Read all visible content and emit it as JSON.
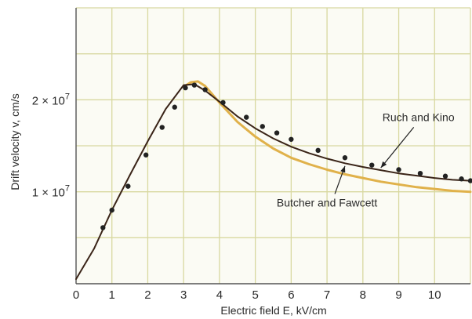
{
  "chart_data": {
    "type": "line",
    "xlabel": "Electric field E, kV/cm",
    "ylabel": "Drift velocity v, cm/s",
    "xlim": [
      0,
      11
    ],
    "ylim": [
      0,
      30000000.0
    ],
    "x_ticks": [
      0,
      1,
      2,
      3,
      4,
      5,
      6,
      7,
      8,
      9,
      10
    ],
    "x_tick_labels": [
      "0",
      "1",
      "2",
      "3",
      "4",
      "5",
      "6",
      "7",
      "8",
      "9",
      "10"
    ],
    "y_ticks": [
      10000000.0,
      20000000.0
    ],
    "y_tick_labels": [
      {
        "mantissa": "1",
        "times": "×",
        "base": "10",
        "exp": "7"
      },
      {
        "mantissa": "2",
        "times": "×",
        "base": "10",
        "exp": "7"
      }
    ],
    "grid": true,
    "series": [
      {
        "name": "Ruch and Kino",
        "color": "#3a2418",
        "marker": "dot",
        "line_x": [
          0,
          0.5,
          1.0,
          1.5,
          2.0,
          2.5,
          3.0,
          3.3,
          3.6,
          4.0,
          4.5,
          5.0,
          5.5,
          6.0,
          6.5,
          7.0,
          7.5,
          8.0,
          8.5,
          9.0,
          9.5,
          10.0,
          10.5,
          11.0
        ],
        "line_y": [
          500000.0,
          3800000.0,
          8000000.0,
          11800000.0,
          15500000.0,
          19000000.0,
          21600000.0,
          21700000.0,
          21000000.0,
          19800000.0,
          18200000.0,
          16900000.0,
          15800000.0,
          14900000.0,
          14200000.0,
          13600000.0,
          13100000.0,
          12700000.0,
          12350000.0,
          12000000.0,
          11750000.0,
          11500000.0,
          11300000.0,
          11200000.0
        ],
        "points_x": [
          0.75,
          1.0,
          1.45,
          1.95,
          2.4,
          2.75,
          3.05,
          3.3,
          3.6,
          4.1,
          4.75,
          5.2,
          5.6,
          6.0,
          6.75,
          7.5,
          8.25,
          9.0,
          9.6,
          10.3,
          10.75,
          11.0
        ],
        "points_y": [
          6100000.0,
          8000000.0,
          10600000.0,
          14000000.0,
          17000000.0,
          19200000.0,
          21300000.0,
          21600000.0,
          21100000.0,
          19700000.0,
          18100000.0,
          17100000.0,
          16400000.0,
          15700000.0,
          14500000.0,
          13700000.0,
          12900000.0,
          12400000.0,
          12000000.0,
          11700000.0,
          11400000.0,
          11200000.0
        ]
      },
      {
        "name": "Butcher and Fawcett",
        "color": "#e0b14a",
        "marker": "none",
        "line_x": [
          3.0,
          3.2,
          3.4,
          3.6,
          3.8,
          4.0,
          4.5,
          5.0,
          5.5,
          6.0,
          6.5,
          7.0,
          7.5,
          8.0,
          8.5,
          9.0,
          9.5,
          10.0,
          10.5,
          11.0
        ],
        "line_y": [
          21400000.0,
          21900000.0,
          22000000.0,
          21500000.0,
          20600000.0,
          19700000.0,
          17600000.0,
          16000000.0,
          14700000.0,
          13700000.0,
          13000000.0,
          12400000.0,
          11900000.0,
          11500000.0,
          11100000.0,
          10800000.0,
          10500000.0,
          10300000.0,
          10100000.0,
          10000000.0
        ]
      }
    ],
    "annotations": [
      {
        "text": "Ruch and Kino",
        "x": 9.55,
        "y": 17700000.0,
        "arrow_to_x": 8.5,
        "arrow_to_y": 12600000.0
      },
      {
        "text": "Butcher and Fawcett",
        "x": 7.0,
        "y": 8400000.0,
        "arrow_to_x": 7.5,
        "arrow_to_y": 12800000.0
      }
    ]
  }
}
